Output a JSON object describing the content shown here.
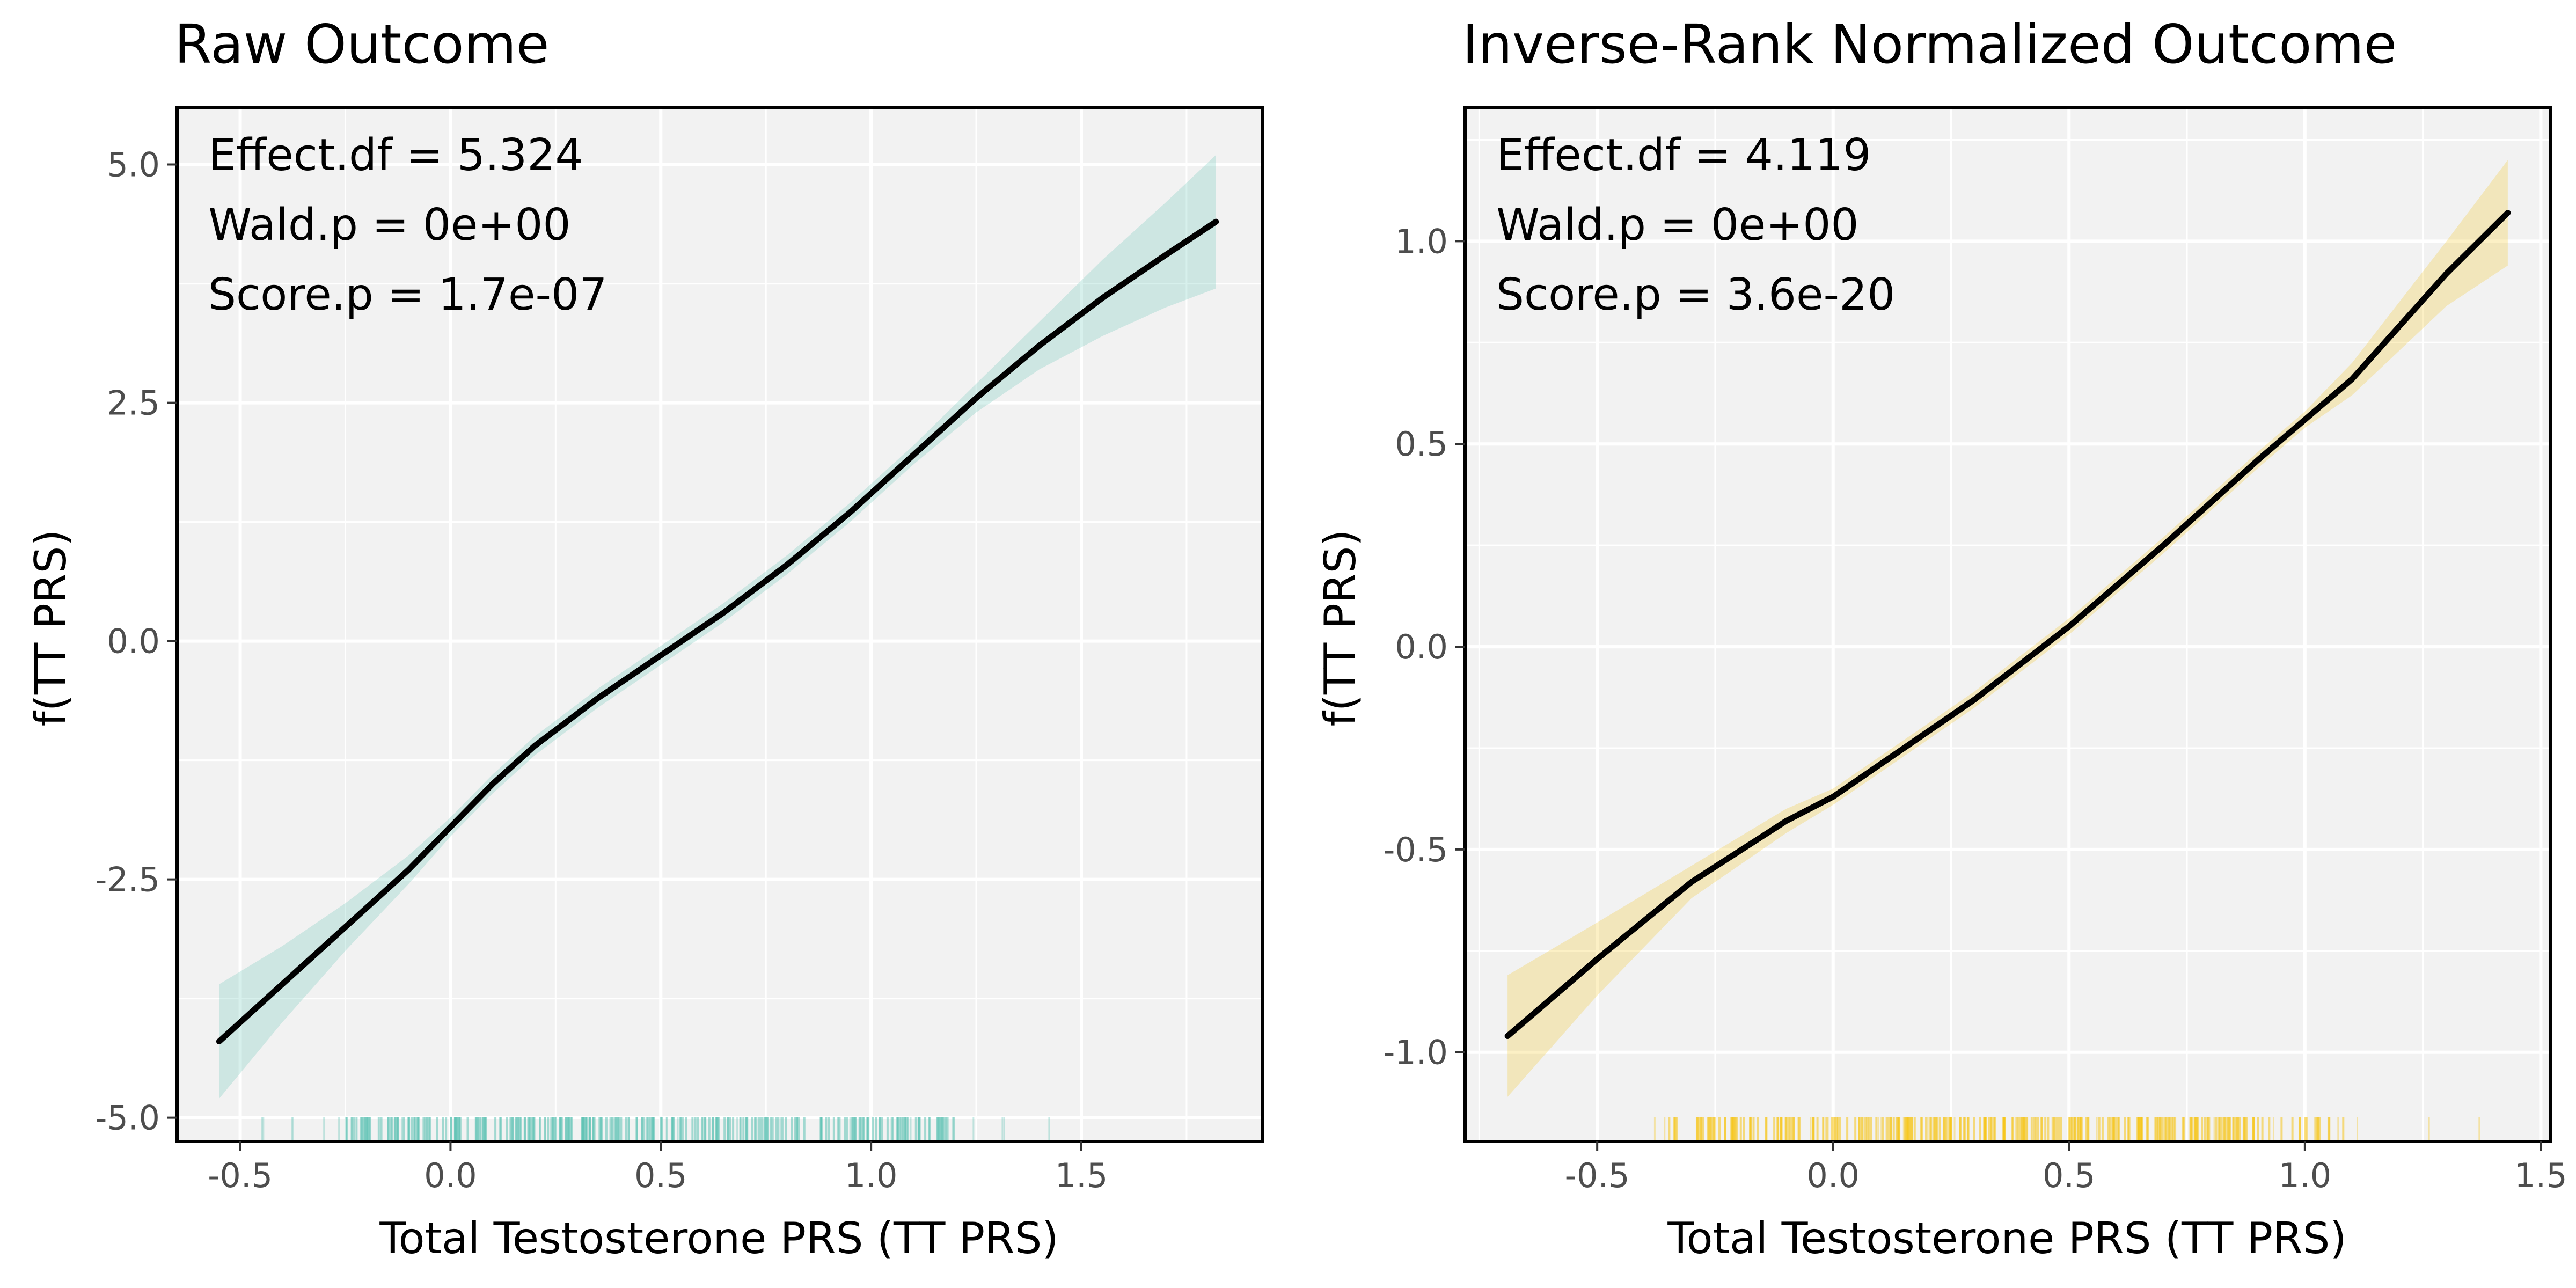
{
  "chart_data": [
    {
      "type": "line",
      "title": "Raw Outcome",
      "xlabel": "Total Testosterone PRS (TT PRS)",
      "ylabel": "f(TT PRS)",
      "xlim": [
        -0.65,
        1.93
      ],
      "ylim": [
        -5.25,
        5.6
      ],
      "x_ticks": [
        -0.5,
        0.0,
        0.5,
        1.0,
        1.5
      ],
      "x_tick_labels": [
        "-0.5",
        "0.0",
        "0.5",
        "1.0",
        "1.5"
      ],
      "y_ticks": [
        -5.0,
        -2.5,
        0.0,
        2.5,
        5.0
      ],
      "y_tick_labels": [
        "-5.0",
        "-2.5",
        "0.0",
        "2.5",
        "5.0"
      ],
      "grid": true,
      "band_color": "#5ec2b5",
      "annotations": [
        "Effect.df = 5.324",
        "Wald.p = 0e+00",
        "Score.p = 1.7e-07"
      ],
      "series": [
        {
          "x": [
            -0.55,
            -0.4,
            -0.25,
            -0.1,
            0.0,
            0.1,
            0.2,
            0.35,
            0.5,
            0.65,
            0.8,
            0.95,
            1.1,
            1.25,
            1.4,
            1.55,
            1.7,
            1.82
          ],
          "y": [
            -4.2,
            -3.6,
            -3.0,
            -2.4,
            -1.95,
            -1.5,
            -1.1,
            -0.6,
            -0.15,
            0.3,
            0.8,
            1.35,
            1.95,
            2.55,
            3.1,
            3.6,
            4.05,
            4.4
          ],
          "lower": [
            -4.8,
            -4.0,
            -3.25,
            -2.55,
            -2.05,
            -1.6,
            -1.2,
            -0.7,
            -0.25,
            0.2,
            0.7,
            1.25,
            1.85,
            2.4,
            2.85,
            3.2,
            3.5,
            3.7
          ],
          "upper": [
            -3.6,
            -3.2,
            -2.75,
            -2.25,
            -1.85,
            -1.4,
            -1.0,
            -0.5,
            -0.05,
            0.4,
            0.9,
            1.45,
            2.05,
            2.7,
            3.35,
            4.0,
            4.6,
            5.1
          ]
        }
      ],
      "rug": {
        "x_min": -0.45,
        "x_max": 1.57,
        "dense_min": -0.25,
        "dense_max": 1.2
      }
    },
    {
      "type": "line",
      "title": "Inverse-Rank Normalized Outcome",
      "xlabel": "Total Testosterone PRS (TT PRS)",
      "ylabel": "f(TT PRS)",
      "xlim": [
        -0.78,
        1.52
      ],
      "ylim": [
        -1.22,
        1.33
      ],
      "x_ticks": [
        -0.5,
        0.0,
        0.5,
        1.0,
        1.5
      ],
      "x_tick_labels": [
        "-0.5",
        "0.0",
        "0.5",
        "1.0",
        "1.5"
      ],
      "y_ticks": [
        -1.0,
        -0.5,
        0.0,
        0.5,
        1.0
      ],
      "y_tick_labels": [
        "-1.0",
        "-0.5",
        "0.0",
        "0.5",
        "1.0"
      ],
      "grid": true,
      "band_color": "#f5c518",
      "annotations": [
        "Effect.df = 4.119",
        "Wald.p = 0e+00",
        "Score.p = 3.6e-20"
      ],
      "series": [
        {
          "x": [
            -0.69,
            -0.5,
            -0.3,
            -0.1,
            0.0,
            0.1,
            0.3,
            0.5,
            0.7,
            0.9,
            1.0,
            1.1,
            1.3,
            1.43
          ],
          "y": [
            -0.96,
            -0.77,
            -0.58,
            -0.43,
            -0.37,
            -0.29,
            -0.13,
            0.05,
            0.25,
            0.46,
            0.56,
            0.66,
            0.92,
            1.07
          ],
          "lower": [
            -1.11,
            -0.86,
            -0.62,
            -0.46,
            -0.39,
            -0.31,
            -0.15,
            0.03,
            0.23,
            0.44,
            0.54,
            0.62,
            0.84,
            0.94
          ],
          "upper": [
            -0.81,
            -0.68,
            -0.54,
            -0.4,
            -0.35,
            -0.27,
            -0.11,
            0.07,
            0.27,
            0.48,
            0.58,
            0.7,
            1.0,
            1.2
          ]
        }
      ],
      "rug": {
        "x_min": -0.45,
        "x_max": 1.38,
        "dense_min": -0.35,
        "dense_max": 1.1
      }
    }
  ]
}
